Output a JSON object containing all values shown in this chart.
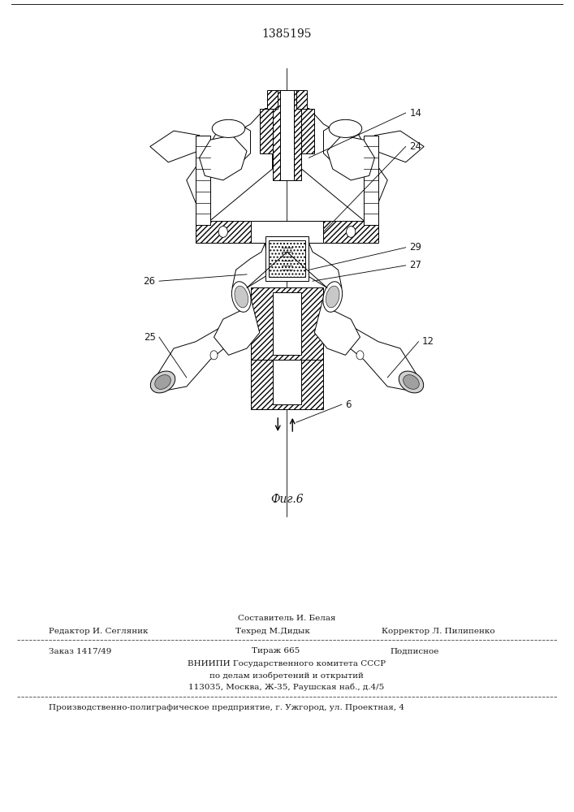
{
  "patent_number": "1385195",
  "figure_caption": "Фиг.6",
  "background_color": "#ffffff",
  "line_color": "#1a1a1a",
  "editor_above": "Составитель И. Белая",
  "editor_left": "Редактор И. Сегляник",
  "editor_center": "Техред М.Дидык",
  "editor_right": "Корректор Л. Пилипенко",
  "order_left": "Заказ 1417/49",
  "order_center": "Тираж 665",
  "order_right": "Подписное",
  "vnipi_lines": [
    "ВНИИПИ Государственного комитета СССР",
    "по делам изобретений и открытий",
    "113035, Москва, Ж-35, Раушская наб., д.4/5"
  ],
  "production_line": "Производственно-полиграфическое предприятие, г. Ужгород, ул. Проектная, 4"
}
